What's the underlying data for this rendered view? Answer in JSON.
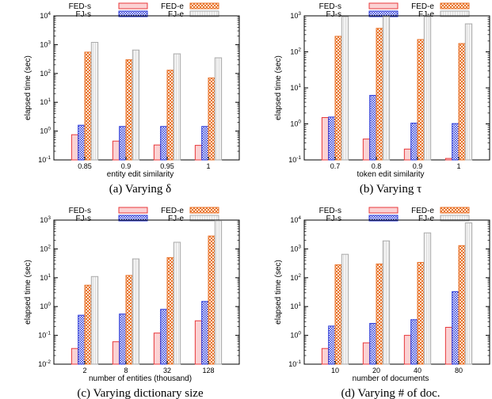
{
  "legend": [
    "FED-s",
    "FED-e",
    "FJ-s",
    "FJ-e"
  ],
  "colors": {
    "fed_s": "#e8383b",
    "fed_e": "#e8722a",
    "fj_s": "#2d3bd8",
    "fj_e": "#aaaaaa"
  },
  "chart_data": [
    {
      "type": "bar",
      "caption": "(a)  Varying δ",
      "xlabel": "entity edit similarity",
      "ylabel": "elapsed time (sec)",
      "yscale": "log",
      "ylim": [
        0.1,
        10000
      ],
      "ytick_exps": [
        -1,
        0,
        1,
        2,
        3,
        4
      ],
      "categories": [
        "0.85",
        "0.9",
        "0.95",
        "1"
      ],
      "series": [
        {
          "name": "FED-s",
          "values": [
            0.75,
            0.45,
            0.33,
            0.32
          ]
        },
        {
          "name": "FJ-s",
          "values": [
            1.6,
            1.45,
            1.45,
            1.45
          ]
        },
        {
          "name": "FED-e",
          "values": [
            550,
            300,
            130,
            70
          ]
        },
        {
          "name": "FJ-e",
          "values": [
            1200,
            650,
            480,
            350
          ]
        }
      ]
    },
    {
      "type": "bar",
      "caption": "(b)  Varying τ",
      "xlabel": "token edit similarity",
      "ylabel": "elapsed time (sec)",
      "yscale": "log",
      "ylim": [
        0.1,
        1000
      ],
      "ytick_exps": [
        -1,
        0,
        1,
        2,
        3
      ],
      "categories": [
        "0.7",
        "0.8",
        "0.9",
        "1"
      ],
      "series": [
        {
          "name": "FED-s",
          "values": [
            1.5,
            0.38,
            0.2,
            0.11
          ]
        },
        {
          "name": "FJ-s",
          "values": [
            1.55,
            6.2,
            1.05,
            1.02
          ]
        },
        {
          "name": "FED-e",
          "values": [
            270,
            450,
            220,
            170
          ]
        },
        {
          "name": "FJ-e",
          "values": [
            950,
            950,
            950,
            600
          ]
        }
      ]
    },
    {
      "type": "bar",
      "caption": "(c)  Varying dictionary size",
      "xlabel": "number of entities (thousand)",
      "ylabel": "elapsed time (sec)",
      "yscale": "log",
      "ylim": [
        0.01,
        1000
      ],
      "ytick_exps": [
        -2,
        -1,
        0,
        1,
        2,
        3
      ],
      "categories": [
        "2",
        "8",
        "32",
        "128"
      ],
      "series": [
        {
          "name": "FED-s",
          "values": [
            0.035,
            0.06,
            0.12,
            0.32
          ]
        },
        {
          "name": "FJ-s",
          "values": [
            0.5,
            0.55,
            0.8,
            1.5
          ]
        },
        {
          "name": "FED-e",
          "values": [
            5.5,
            12,
            50,
            280
          ]
        },
        {
          "name": "FJ-e",
          "values": [
            11,
            45,
            170,
            950
          ]
        }
      ]
    },
    {
      "type": "bar",
      "caption": "(d)  Varying # of doc.",
      "xlabel": "number of documents",
      "ylabel": "elapsed time (sec)",
      "yscale": "log",
      "ylim": [
        0.1,
        10000
      ],
      "ytick_exps": [
        -1,
        0,
        1,
        2,
        3,
        4
      ],
      "categories": [
        "10",
        "20",
        "40",
        "80"
      ],
      "series": [
        {
          "name": "FED-s",
          "values": [
            0.35,
            0.55,
            1.0,
            1.9
          ]
        },
        {
          "name": "FJ-s",
          "values": [
            2.1,
            2.6,
            3.5,
            33
          ]
        },
        {
          "name": "FED-e",
          "values": [
            280,
            300,
            340,
            1300
          ]
        },
        {
          "name": "FJ-e",
          "values": [
            650,
            1900,
            3600,
            8000
          ]
        }
      ]
    }
  ]
}
